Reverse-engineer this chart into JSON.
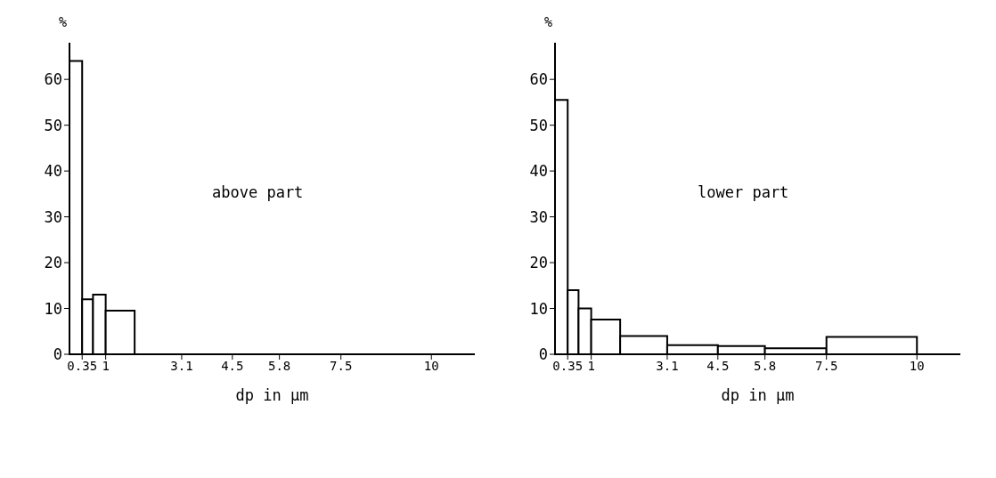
{
  "chart_data": [
    {
      "type": "histogram",
      "ylabel": "%",
      "xlabel": "dp in μm",
      "annotations": [
        "above part"
      ],
      "bins": [
        0,
        0.35,
        0.65,
        1,
        1.8
      ],
      "values": [
        64,
        12,
        13,
        9.5
      ],
      "color": "#000000",
      "xlim": [
        0,
        11.2
      ],
      "xticks": [
        0.35,
        1,
        3.1,
        4.5,
        5.8,
        7.5,
        10
      ],
      "ylim": [
        0,
        68
      ],
      "yticks": [
        0,
        10,
        20,
        30,
        40,
        50,
        60
      ],
      "grid": false
    },
    {
      "type": "histogram",
      "ylabel": "%",
      "xlabel": "dp in μm",
      "annotations": [
        "lower part"
      ],
      "bins": [
        0,
        0.35,
        0.65,
        1,
        1.8,
        3.1,
        4.5,
        5.8,
        7.5,
        10
      ],
      "values": [
        55.5,
        14,
        10,
        7.6,
        4,
        2,
        1.8,
        1.3,
        3.8
      ],
      "color": "#000000",
      "xlim": [
        0,
        11.2
      ],
      "xticks": [
        0.35,
        1,
        3.1,
        4.5,
        5.8,
        7.5,
        10
      ],
      "ylim": [
        0,
        68
      ],
      "yticks": [
        0,
        10,
        20,
        30,
        40,
        50,
        60
      ],
      "grid": false
    }
  ]
}
